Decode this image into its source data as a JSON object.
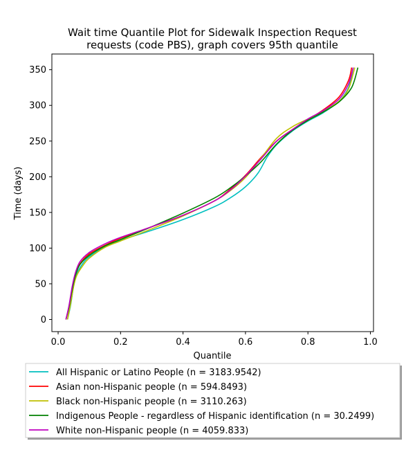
{
  "chart_data": {
    "type": "line",
    "title_lines": [
      "Wait time Quantile Plot for Sidewalk Inspection Request",
      "requests (code PBS), graph covers 95th quantile"
    ],
    "xlabel": "Quantile",
    "ylabel": "Time (days)",
    "xlim": [
      -0.02,
      1.01
    ],
    "ylim": [
      -17,
      372
    ],
    "xticks": [
      0.0,
      0.2,
      0.4,
      0.6,
      0.8,
      1.0
    ],
    "xtick_labels": [
      "0.0",
      "0.2",
      "0.4",
      "0.6",
      "0.8",
      "1.0"
    ],
    "yticks": [
      0,
      50,
      100,
      150,
      200,
      250,
      300,
      350
    ],
    "ytick_labels": [
      "0",
      "50",
      "100",
      "150",
      "200",
      "250",
      "300",
      "350"
    ],
    "grid": false,
    "legend_position": "below",
    "series": [
      {
        "name": "All Hispanic or Latino People (n = 3183.9542)",
        "color": "#00bfbf",
        "x": [
          0.03,
          0.04,
          0.05,
          0.06,
          0.08,
          0.1,
          0.15,
          0.2,
          0.3,
          0.4,
          0.5,
          0.55,
          0.6,
          0.64,
          0.67,
          0.7,
          0.75,
          0.8,
          0.85,
          0.9,
          0.93,
          0.945
        ],
        "y": [
          0,
          20,
          48,
          64,
          79,
          88,
          102,
          111,
          125,
          140,
          158,
          170,
          186,
          205,
          228,
          245,
          264,
          278,
          290,
          306,
          325,
          353
        ]
      },
      {
        "name": "Asian non-Hispanic people (n = 594.8493)",
        "color": "#ff0000",
        "x": [
          0.025,
          0.035,
          0.045,
          0.055,
          0.07,
          0.1,
          0.15,
          0.2,
          0.3,
          0.4,
          0.5,
          0.55,
          0.6,
          0.65,
          0.7,
          0.75,
          0.8,
          0.85,
          0.9,
          0.93,
          0.94
        ],
        "y": [
          0,
          18,
          44,
          63,
          78,
          92,
          104,
          114,
          130,
          146,
          166,
          182,
          202,
          227,
          250,
          266,
          280,
          294,
          312,
          335,
          353
        ]
      },
      {
        "name": "Black non-Hispanic people (n = 3110.263)",
        "color": "#bfbf00",
        "x": [
          0.03,
          0.04,
          0.05,
          0.06,
          0.08,
          0.1,
          0.15,
          0.2,
          0.3,
          0.4,
          0.5,
          0.55,
          0.6,
          0.65,
          0.7,
          0.75,
          0.8,
          0.85,
          0.9,
          0.93,
          0.95
        ],
        "y": [
          0,
          22,
          47,
          62,
          76,
          86,
          101,
          110,
          127,
          145,
          166,
          180,
          199,
          226,
          254,
          270,
          281,
          292,
          306,
          323,
          353
        ]
      },
      {
        "name": "Indigenous People - regardless of Hispanic identification (n = 30.2499)",
        "color": "#008000",
        "x": [
          0.025,
          0.035,
          0.045,
          0.055,
          0.07,
          0.1,
          0.15,
          0.2,
          0.3,
          0.4,
          0.5,
          0.55,
          0.6,
          0.65,
          0.7,
          0.75,
          0.8,
          0.85,
          0.9,
          0.94,
          0.96
        ],
        "y": [
          0,
          18,
          42,
          61,
          77,
          90,
          103,
          112,
          130,
          149,
          170,
          184,
          201,
          221,
          246,
          265,
          279,
          291,
          305,
          325,
          353
        ]
      },
      {
        "name": "White non-Hispanic people (n = 4059.833)",
        "color": "#bf00bf",
        "x": [
          0.025,
          0.035,
          0.045,
          0.055,
          0.07,
          0.1,
          0.15,
          0.2,
          0.3,
          0.4,
          0.5,
          0.55,
          0.6,
          0.65,
          0.7,
          0.75,
          0.8,
          0.85,
          0.9,
          0.93,
          0.945
        ],
        "y": [
          0,
          20,
          46,
          65,
          81,
          94,
          106,
          115,
          130,
          146,
          166,
          181,
          201,
          225,
          250,
          266,
          281,
          293,
          309,
          330,
          353
        ]
      }
    ]
  }
}
